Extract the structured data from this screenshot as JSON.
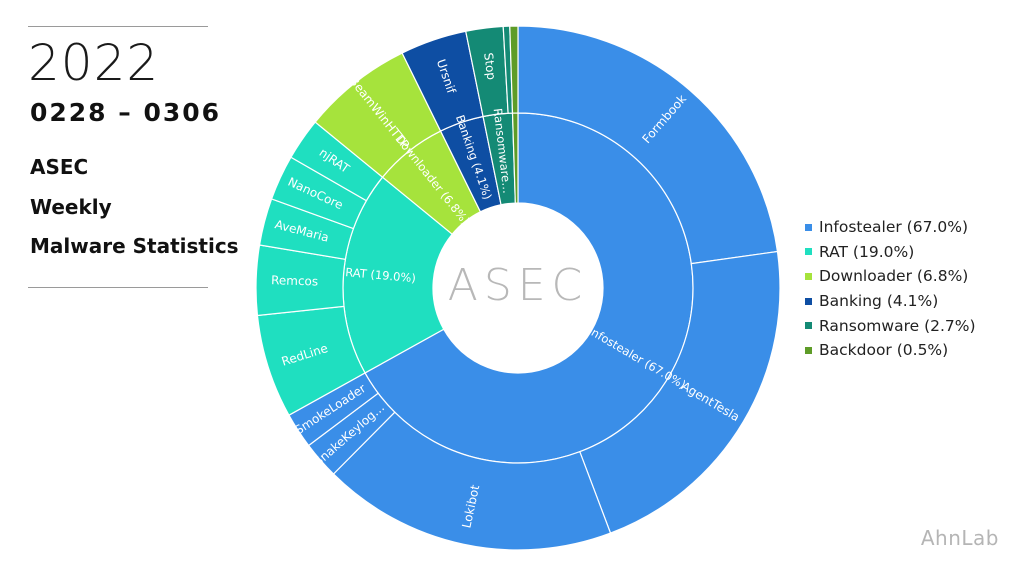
{
  "header": {
    "year": "2022",
    "range": "0228 – 0306",
    "lines": [
      "ASEC",
      "Weekly",
      "Malware Statistics"
    ]
  },
  "brand": "AhnLab",
  "logo": {
    "text": "ASEC",
    "color": "#b8b8b8"
  },
  "chart_data": {
    "type": "sunburst",
    "unit": "%",
    "legend_position": "right",
    "categories": [
      {
        "name": "Infostealer",
        "label": "Infostealer (67.0%)",
        "inner_label": "Infostealer (67.0%)",
        "value": 67.0,
        "color": "#3a8ee8",
        "children": [
          {
            "name": "Formbook",
            "value": 22.8
          },
          {
            "name": "AgentTesla",
            "value": 21.5
          },
          {
            "name": "Lokibot",
            "value": 18.2
          },
          {
            "name": "SnakeKeylog…",
            "value": 2.3
          },
          {
            "name": "SmokeLoader",
            "value": 2.2
          }
        ]
      },
      {
        "name": "RAT",
        "label": "RAT (19.0%)",
        "inner_label": "RAT (19.0%)",
        "value": 19.0,
        "color": "#1fdfc0",
        "children": [
          {
            "name": "RedLine",
            "value": 6.4
          },
          {
            "name": "Remcos",
            "value": 4.3
          },
          {
            "name": "AveMaria",
            "value": 2.9
          },
          {
            "name": "NanoCore",
            "value": 2.8
          },
          {
            "name": "njRAT",
            "value": 2.6
          }
        ]
      },
      {
        "name": "Downloader",
        "label": "Downloader (6.8%)",
        "inner_label": "Downloader (6.8%)",
        "value": 6.8,
        "color": "#a6e33c",
        "children": [
          {
            "name": "BeamWinHTTP",
            "value": 6.8
          }
        ]
      },
      {
        "name": "Banking",
        "label": "Banking (4.1%)",
        "inner_label": "Banking (4.1%)",
        "value": 4.1,
        "color": "#0e4ea3",
        "children": [
          {
            "name": "Ursnif",
            "value": 4.1
          }
        ]
      },
      {
        "name": "Ransomware",
        "label": "Ransomware (2.7%)",
        "inner_label": "Ransomware…",
        "value": 2.7,
        "color": "#148a75",
        "children": [
          {
            "name": "Stop",
            "value": 2.3
          },
          {
            "name": "",
            "value": 0.4
          }
        ]
      },
      {
        "name": "Backdoor",
        "label": "Backdoor (0.5%)",
        "inner_label": "",
        "value": 0.5,
        "color": "#5e9c28",
        "children": [
          {
            "name": "",
            "value": 0.5
          }
        ]
      }
    ]
  }
}
